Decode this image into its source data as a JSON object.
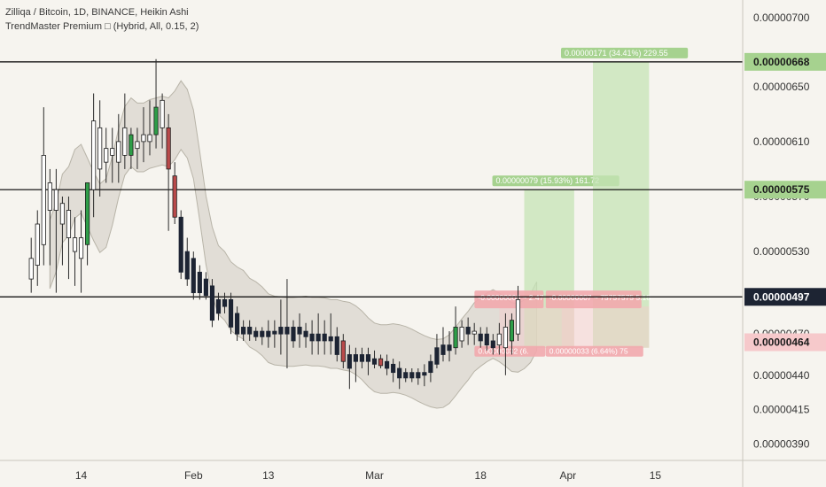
{
  "legend": {
    "title": "Zilliqa / Bitcoin, 1D, BINANCE, Heikin Ashi",
    "indicator": "TrendMaster Premium □ (Hybrid, All, 0.15, 2)"
  },
  "colors": {
    "background": "#f6f4ef",
    "bull_green": "#2e9e48",
    "bear_red": "#b94a4a",
    "hollow_up": "#ffffff",
    "dark_candle": "#1d2433",
    "band_fill": "#d9d6cd",
    "band_line": "#b8b4a8",
    "target_green": "#c6e4b5",
    "target_label": "#a6d28f",
    "stop_red": "#f6c9cb",
    "stop_label": "#f2a9ad",
    "grid_line": "#000000"
  },
  "chart_data": {
    "type": "candlestick",
    "y_ticks": [
      3.9e-06,
      4.15e-06,
      4.4e-06,
      4.7e-06,
      5e-06,
      5.3e-06,
      5.7e-06,
      6.1e-06,
      6.5e-06,
      7e-06
    ],
    "y_tick_labels": [
      "0.00000390",
      "0.00000415",
      "0.00000440",
      "0.00000470",
      "0.00000500",
      "0.00000530",
      "0.00000570",
      "0.00000610",
      "0.00000650",
      "0.00000700"
    ],
    "ylim": [
      3.78e-06,
      7.13e-06
    ],
    "x_tick_labels": [
      "14",
      "Feb",
      "13",
      "Mar",
      "18",
      "Apr",
      "15"
    ],
    "x_tick_days": [
      13,
      31,
      43,
      60,
      77,
      91,
      105
    ],
    "x_range_days": [
      0,
      119
    ],
    "horizontal_lines": [
      6.68e-06,
      5.75e-06,
      4.97e-06
    ],
    "price_labels": [
      {
        "text": "0.00000668",
        "value": 6.68e-06,
        "style": "green"
      },
      {
        "text": "0.00000575",
        "value": 5.75e-06,
        "style": "green"
      },
      {
        "text": "0.00000497",
        "value": 4.97e-06,
        "style": "dark"
      },
      {
        "text": "0.00000464",
        "value": 4.64e-06,
        "style": "red"
      }
    ],
    "candles": [
      {
        "day": 5,
        "o": 5.1,
        "h": 5.4,
        "l": 5.0,
        "c": 5.25,
        "color": "hollow"
      },
      {
        "day": 6,
        "o": 5.2,
        "h": 5.6,
        "l": 5.05,
        "c": 5.5,
        "color": "hollow"
      },
      {
        "day": 7,
        "o": 5.35,
        "h": 6.35,
        "l": 5.2,
        "c": 6.0,
        "color": "hollow"
      },
      {
        "day": 8,
        "o": 5.6,
        "h": 5.9,
        "l": 5.2,
        "c": 5.8,
        "color": "hollow"
      },
      {
        "day": 9,
        "o": 5.6,
        "h": 5.9,
        "l": 5.0,
        "c": 5.75,
        "color": "hollow"
      },
      {
        "day": 10,
        "o": 5.5,
        "h": 5.7,
        "l": 5.2,
        "c": 5.65,
        "color": "hollow"
      },
      {
        "day": 11,
        "o": 5.4,
        "h": 5.7,
        "l": 5.1,
        "c": 5.6,
        "color": "hollow"
      },
      {
        "day": 12,
        "o": 5.3,
        "h": 5.55,
        "l": 5.05,
        "c": 5.4,
        "color": "hollow"
      },
      {
        "day": 13,
        "o": 5.25,
        "h": 5.6,
        "l": 5.0,
        "c": 5.4,
        "color": "hollow"
      },
      {
        "day": 14,
        "o": 5.35,
        "h": 5.8,
        "l": 5.2,
        "c": 5.8,
        "color": "green"
      },
      {
        "day": 15,
        "o": 5.75,
        "h": 6.45,
        "l": 5.55,
        "c": 6.25,
        "color": "hollow"
      },
      {
        "day": 16,
        "o": 5.9,
        "h": 6.4,
        "l": 5.7,
        "c": 6.2,
        "color": "hollow"
      },
      {
        "day": 17,
        "o": 5.95,
        "h": 6.2,
        "l": 5.8,
        "c": 6.05,
        "color": "hollow"
      },
      {
        "day": 18,
        "o": 6.0,
        "h": 6.2,
        "l": 5.8,
        "c": 6.05,
        "color": "hollow"
      },
      {
        "day": 19,
        "o": 5.95,
        "h": 6.3,
        "l": 5.8,
        "c": 6.1,
        "color": "hollow"
      },
      {
        "day": 20,
        "o": 6.0,
        "h": 6.45,
        "l": 5.9,
        "c": 6.2,
        "color": "hollow"
      },
      {
        "day": 21,
        "o": 6.0,
        "h": 6.2,
        "l": 5.9,
        "c": 6.15,
        "color": "green"
      },
      {
        "day": 22,
        "o": 6.05,
        "h": 6.2,
        "l": 5.9,
        "c": 6.1,
        "color": "hollow"
      },
      {
        "day": 23,
        "o": 6.1,
        "h": 6.35,
        "l": 5.95,
        "c": 6.15,
        "color": "hollow"
      },
      {
        "day": 24,
        "o": 6.1,
        "h": 6.4,
        "l": 6.0,
        "c": 6.15,
        "color": "hollow"
      },
      {
        "day": 25,
        "o": 6.15,
        "h": 6.7,
        "l": 6.05,
        "c": 6.35,
        "color": "green"
      },
      {
        "day": 26,
        "o": 6.2,
        "h": 6.45,
        "l": 6.05,
        "c": 6.4,
        "color": "hollow"
      },
      {
        "day": 27,
        "o": 6.2,
        "h": 6.3,
        "l": 5.45,
        "c": 5.9,
        "color": "red"
      },
      {
        "day": 28,
        "o": 5.85,
        "h": 5.95,
        "l": 5.5,
        "c": 5.55,
        "color": "red"
      },
      {
        "day": 29,
        "o": 5.55,
        "h": 5.6,
        "l": 5.1,
        "c": 5.15,
        "color": "dark"
      },
      {
        "day": 30,
        "o": 5.3,
        "h": 5.4,
        "l": 5.05,
        "c": 5.1,
        "color": "dark"
      },
      {
        "day": 31,
        "o": 5.25,
        "h": 5.3,
        "l": 4.95,
        "c": 5.0,
        "color": "dark"
      },
      {
        "day": 32,
        "o": 5.15,
        "h": 5.2,
        "l": 4.95,
        "c": 5.0,
        "color": "dark"
      },
      {
        "day": 33,
        "o": 5.1,
        "h": 5.15,
        "l": 4.95,
        "c": 4.98,
        "color": "dark"
      },
      {
        "day": 34,
        "o": 5.05,
        "h": 5.1,
        "l": 4.75,
        "c": 4.8,
        "color": "dark"
      },
      {
        "day": 35,
        "o": 4.95,
        "h": 5.0,
        "l": 4.8,
        "c": 4.85,
        "color": "dark"
      },
      {
        "day": 36,
        "o": 4.95,
        "h": 5.0,
        "l": 4.85,
        "c": 4.9,
        "color": "dark"
      },
      {
        "day": 37,
        "o": 4.95,
        "h": 5.0,
        "l": 4.7,
        "c": 4.75,
        "color": "dark"
      },
      {
        "day": 38,
        "o": 4.85,
        "h": 4.9,
        "l": 4.65,
        "c": 4.7,
        "color": "dark"
      },
      {
        "day": 39,
        "o": 4.75,
        "h": 4.8,
        "l": 4.65,
        "c": 4.7,
        "color": "dark"
      },
      {
        "day": 40,
        "o": 4.75,
        "h": 4.8,
        "l": 4.65,
        "c": 4.7,
        "color": "dark"
      },
      {
        "day": 41,
        "o": 4.72,
        "h": 4.75,
        "l": 4.65,
        "c": 4.68,
        "color": "dark"
      },
      {
        "day": 42,
        "o": 4.72,
        "h": 4.75,
        "l": 4.62,
        "c": 4.68,
        "color": "dark"
      },
      {
        "day": 43,
        "o": 4.72,
        "h": 4.8,
        "l": 4.6,
        "c": 4.68,
        "color": "dark"
      },
      {
        "day": 44,
        "o": 4.72,
        "h": 4.8,
        "l": 4.6,
        "c": 4.7,
        "color": "dark"
      },
      {
        "day": 45,
        "o": 4.75,
        "h": 4.95,
        "l": 4.55,
        "c": 4.7,
        "color": "dark"
      },
      {
        "day": 46,
        "o": 4.75,
        "h": 5.1,
        "l": 4.45,
        "c": 4.7,
        "color": "dark"
      },
      {
        "day": 47,
        "o": 4.75,
        "h": 4.8,
        "l": 4.6,
        "c": 4.65,
        "color": "dark"
      },
      {
        "day": 48,
        "o": 4.75,
        "h": 4.85,
        "l": 4.6,
        "c": 4.7,
        "color": "dark"
      },
      {
        "day": 49,
        "o": 4.72,
        "h": 4.78,
        "l": 4.6,
        "c": 4.68,
        "color": "dark"
      },
      {
        "day": 50,
        "o": 4.7,
        "h": 4.8,
        "l": 4.55,
        "c": 4.65,
        "color": "dark"
      },
      {
        "day": 51,
        "o": 4.7,
        "h": 4.85,
        "l": 4.55,
        "c": 4.65,
        "color": "dark"
      },
      {
        "day": 52,
        "o": 4.7,
        "h": 4.8,
        "l": 4.55,
        "c": 4.65,
        "color": "dark"
      },
      {
        "day": 53,
        "o": 4.68,
        "h": 4.85,
        "l": 4.55,
        "c": 4.65,
        "color": "dark"
      },
      {
        "day": 54,
        "o": 4.68,
        "h": 4.75,
        "l": 4.5,
        "c": 4.55,
        "color": "dark"
      },
      {
        "day": 55,
        "o": 4.65,
        "h": 4.7,
        "l": 4.45,
        "c": 4.5,
        "color": "red"
      },
      {
        "day": 56,
        "o": 4.55,
        "h": 4.62,
        "l": 4.3,
        "c": 4.45,
        "color": "dark"
      },
      {
        "day": 57,
        "o": 4.55,
        "h": 4.6,
        "l": 4.35,
        "c": 4.5,
        "color": "dark"
      },
      {
        "day": 58,
        "o": 4.55,
        "h": 4.6,
        "l": 4.45,
        "c": 4.5,
        "color": "dark"
      },
      {
        "day": 59,
        "o": 4.55,
        "h": 4.6,
        "l": 4.4,
        "c": 4.5,
        "color": "dark"
      },
      {
        "day": 60,
        "o": 4.52,
        "h": 4.58,
        "l": 4.45,
        "c": 4.48,
        "color": "dark"
      },
      {
        "day": 61,
        "o": 4.52,
        "h": 4.55,
        "l": 4.45,
        "c": 4.47,
        "color": "red"
      },
      {
        "day": 62,
        "o": 4.5,
        "h": 4.55,
        "l": 4.4,
        "c": 4.45,
        "color": "dark"
      },
      {
        "day": 63,
        "o": 4.48,
        "h": 4.52,
        "l": 4.35,
        "c": 4.42,
        "color": "dark"
      },
      {
        "day": 64,
        "o": 4.45,
        "h": 4.5,
        "l": 4.3,
        "c": 4.38,
        "color": "dark"
      },
      {
        "day": 65,
        "o": 4.42,
        "h": 4.45,
        "l": 4.35,
        "c": 4.38,
        "color": "dark"
      },
      {
        "day": 66,
        "o": 4.42,
        "h": 4.45,
        "l": 4.35,
        "c": 4.38,
        "color": "dark"
      },
      {
        "day": 67,
        "o": 4.42,
        "h": 4.45,
        "l": 4.33,
        "c": 4.38,
        "color": "dark"
      },
      {
        "day": 68,
        "o": 4.42,
        "h": 4.48,
        "l": 4.32,
        "c": 4.4,
        "color": "dark"
      },
      {
        "day": 69,
        "o": 4.42,
        "h": 4.55,
        "l": 4.35,
        "c": 4.5,
        "color": "dark"
      },
      {
        "day": 70,
        "o": 4.48,
        "h": 4.7,
        "l": 4.45,
        "c": 4.6,
        "color": "dark"
      },
      {
        "day": 71,
        "o": 4.55,
        "h": 4.75,
        "l": 4.5,
        "c": 4.62,
        "color": "dark"
      },
      {
        "day": 72,
        "o": 4.58,
        "h": 4.72,
        "l": 4.5,
        "c": 4.62,
        "color": "dark"
      },
      {
        "day": 73,
        "o": 4.6,
        "h": 4.9,
        "l": 4.55,
        "c": 4.75,
        "color": "green"
      },
      {
        "day": 74,
        "o": 4.65,
        "h": 4.8,
        "l": 4.6,
        "c": 4.75,
        "color": "hollow"
      },
      {
        "day": 75,
        "o": 4.7,
        "h": 4.82,
        "l": 4.62,
        "c": 4.75,
        "color": "dark"
      },
      {
        "day": 76,
        "o": 4.7,
        "h": 4.78,
        "l": 4.62,
        "c": 4.72,
        "color": "hollow"
      },
      {
        "day": 77,
        "o": 4.7,
        "h": 4.75,
        "l": 4.6,
        "c": 4.65,
        "color": "dark"
      },
      {
        "day": 78,
        "o": 4.7,
        "h": 4.75,
        "l": 4.58,
        "c": 4.62,
        "color": "dark"
      },
      {
        "day": 79,
        "o": 4.65,
        "h": 4.7,
        "l": 4.55,
        "c": 4.6,
        "color": "dark"
      },
      {
        "day": 80,
        "o": 4.62,
        "h": 4.78,
        "l": 4.55,
        "c": 4.7,
        "color": "hollow"
      },
      {
        "day": 81,
        "o": 4.6,
        "h": 4.85,
        "l": 4.4,
        "c": 4.75,
        "color": "hollow"
      },
      {
        "day": 82,
        "o": 4.65,
        "h": 4.85,
        "l": 4.55,
        "c": 4.8,
        "color": "green"
      },
      {
        "day": 83,
        "o": 4.7,
        "h": 5.05,
        "l": 4.65,
        "c": 4.95,
        "color": "hollow"
      }
    ],
    "target_boxes": [
      {
        "start_day": 84,
        "end_day": 92,
        "bottom": 4.6e-06,
        "top": 5.75e-06,
        "label": "0.00000079 (15.93%) 161.72"
      },
      {
        "start_day": 95,
        "end_day": 104,
        "bottom": 4.6e-06,
        "top": 6.68e-06,
        "label": "0.00000171 (34.41%) 229.55"
      }
    ],
    "stop_boxes": [
      {
        "start_day": 80,
        "end_day": 92,
        "top": 4.9e-06,
        "bottom": 4.6e-06,
        "label_top": "-0.00000006 ~ 2.47",
        "label_bottom": "0.00000032 (6."
      },
      {
        "start_day": 90,
        "end_day": 104,
        "top": 4.9e-06,
        "bottom": 4.6e-06,
        "label_top": "-0.00000007 ~ 75757575 5.18",
        "label_bottom": "0.00000033 (6.64%) 75"
      }
    ]
  }
}
